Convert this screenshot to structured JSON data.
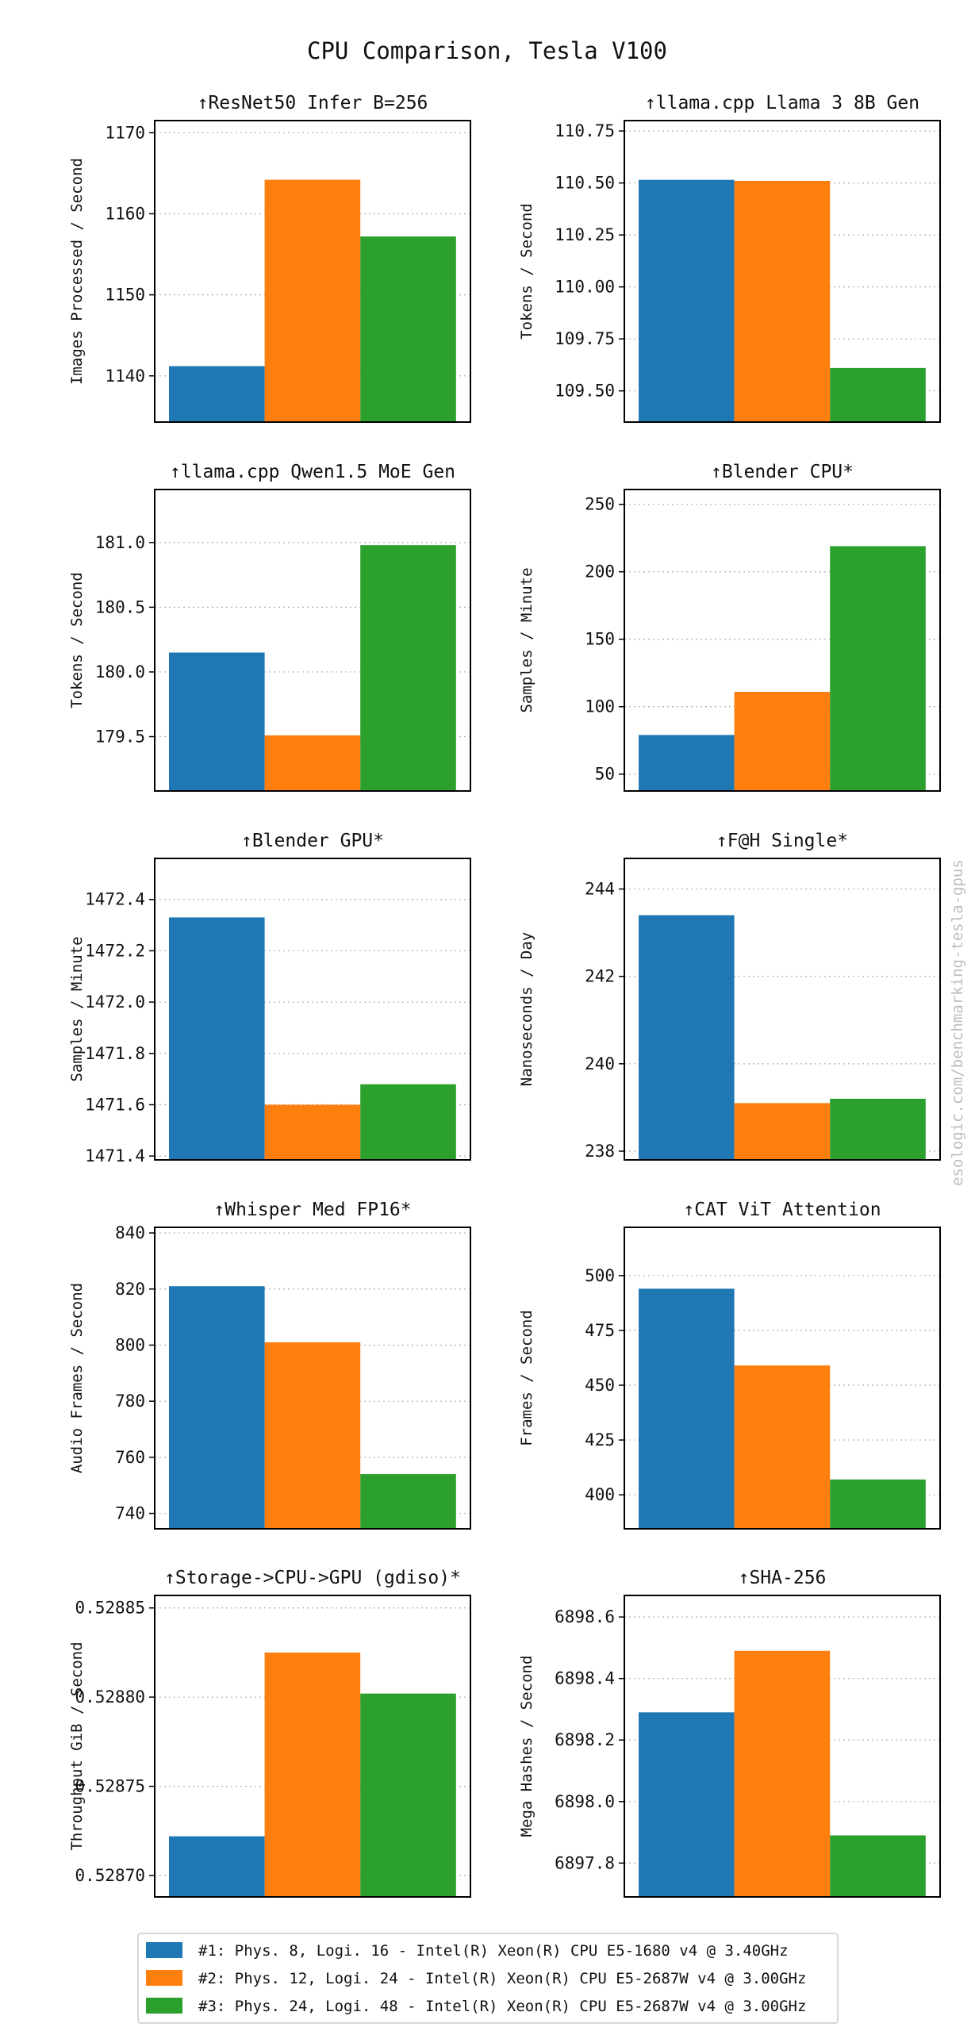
{
  "figure": {
    "title": "CPU Comparison, Tesla V100",
    "watermark": "esologic.com/benchmarking-tesla-gpus"
  },
  "colors": [
    "#1f77b4",
    "#ff7f0e",
    "#2ca02c"
  ],
  "legend": {
    "placement": "bottom-center",
    "entries": [
      "#1: Phys. 8, Logi. 16 - Intel(R) Xeon(R) CPU E5-1680 v4 @ 3.40GHz",
      "#2: Phys. 12, Logi. 24 - Intel(R) Xeon(R) CPU E5-2687W v4 @ 3.00GHz",
      "#3: Phys. 24, Logi. 48 - Intel(R) Xeon(R) CPU E5-2687W v4 @ 3.00GHz"
    ]
  },
  "chart_data": [
    {
      "type": "bar",
      "title": "↑ResNet50 Infer B=256",
      "ylabel": "Images Processed / Second",
      "values": [
        1141.2,
        1164.2,
        1157.2
      ],
      "ylim": [
        1134.3,
        1171.5
      ],
      "yticks": [
        1140,
        1150,
        1160,
        1170
      ],
      "tick_labels": [
        "1140",
        "1150",
        "1160",
        "1170"
      ],
      "grid": true
    },
    {
      "type": "bar",
      "title": "↑llama.cpp Llama 3 8B Gen",
      "ylabel": "Tokens / Second",
      "values": [
        110.515,
        110.51,
        109.61
      ],
      "ylim": [
        109.35,
        110.8
      ],
      "yticks": [
        109.5,
        109.75,
        110.0,
        110.25,
        110.5,
        110.75
      ],
      "tick_labels": [
        "109.50",
        "109.75",
        "110.00",
        "110.25",
        "110.50",
        "110.75"
      ],
      "grid": true
    },
    {
      "type": "bar",
      "title": "↑llama.cpp Qwen1.5 MoE Gen",
      "ylabel": "Tokens / Second",
      "values": [
        180.15,
        179.51,
        180.98
      ],
      "ylim": [
        179.08,
        181.41
      ],
      "yticks": [
        179.5,
        180.0,
        180.5,
        181.0
      ],
      "tick_labels": [
        "179.5",
        "180.0",
        "180.5",
        "181.0"
      ],
      "grid": true
    },
    {
      "type": "bar",
      "title": "↑Blender CPU*",
      "ylabel": "Samples / Minute",
      "values": [
        79,
        111,
        219
      ],
      "ylim": [
        37.5,
        261
      ],
      "yticks": [
        50,
        100,
        150,
        200,
        250
      ],
      "tick_labels": [
        "50",
        "100",
        "150",
        "200",
        "250"
      ],
      "grid": true
    },
    {
      "type": "bar",
      "title": "↑Blender GPU*",
      "ylabel": "Samples / Minute",
      "values": [
        1472.33,
        1471.6,
        1471.68
      ],
      "ylim": [
        1471.385,
        1472.56
      ],
      "yticks": [
        1471.4,
        1471.6,
        1471.8,
        1472.0,
        1472.2,
        1472.4
      ],
      "tick_labels": [
        "1471.4",
        "1471.6",
        "1471.8",
        "1472.0",
        "1472.2",
        "1472.4"
      ],
      "grid": true
    },
    {
      "type": "bar",
      "title": "↑F@H Single*",
      "ylabel": "Nanoseconds / Day",
      "values": [
        243.4,
        239.1,
        239.2
      ],
      "ylim": [
        237.8,
        244.7
      ],
      "yticks": [
        238,
        240,
        242,
        244
      ],
      "tick_labels": [
        "238",
        "240",
        "242",
        "244"
      ],
      "grid": true
    },
    {
      "type": "bar",
      "title": "↑Whisper Med FP16*",
      "ylabel": "Audio Frames / Second",
      "values": [
        821,
        801,
        754
      ],
      "ylim": [
        734.5,
        842
      ],
      "yticks": [
        740,
        760,
        780,
        800,
        820,
        840
      ],
      "tick_labels": [
        "740",
        "760",
        "780",
        "800",
        "820",
        "840"
      ],
      "grid": true
    },
    {
      "type": "bar",
      "title": "↑CAT ViT Attention",
      "ylabel": "Frames / Second",
      "values": [
        494,
        459,
        407
      ],
      "ylim": [
        384.5,
        522
      ],
      "yticks": [
        400,
        425,
        450,
        475,
        500
      ],
      "tick_labels": [
        "400",
        "425",
        "450",
        "475",
        "500"
      ],
      "grid": true
    },
    {
      "type": "bar",
      "title": "↑Storage->CPU->GPU (gdiso)*",
      "ylabel": "Throughput GiB / Second",
      "values": [
        0.528722,
        0.528825,
        0.528802
      ],
      "ylim": [
        0.528688,
        0.528857
      ],
      "yticks": [
        0.5287,
        0.52875,
        0.5288,
        0.52885
      ],
      "tick_labels": [
        "0.52870",
        "0.52875",
        "0.52880",
        "0.52885"
      ],
      "grid": true
    },
    {
      "type": "bar",
      "title": "↑SHA-256",
      "ylabel": "Mega Hashes / Second",
      "values": [
        6898.29,
        6898.49,
        6897.89
      ],
      "ylim": [
        6897.69,
        6898.67
      ],
      "yticks": [
        6897.8,
        6898.0,
        6898.2,
        6898.4,
        6898.6
      ],
      "tick_labels": [
        "6897.8",
        "6898.0",
        "6898.2",
        "6898.4",
        "6898.6"
      ],
      "grid": true
    }
  ]
}
